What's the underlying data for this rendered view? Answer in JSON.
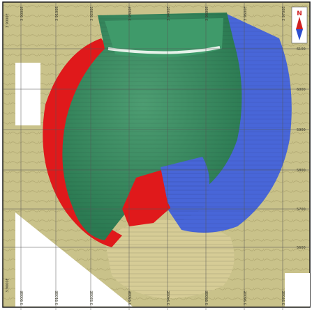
{
  "north_arrow": {
    "letter": "N"
  },
  "grid": {
    "top_labels": [
      "3 9000E",
      "3 9100E",
      "3 9200E",
      "3 9300E",
      "3 9400E",
      "3 9500E",
      "3 9600E",
      "3 9700E"
    ],
    "bottom_labels": [
      "3 9000E",
      "3 9100E",
      "3 9200E",
      "3 9300E",
      "3 9400E",
      "3 9500E",
      "3 9600E",
      "3 9700E"
    ],
    "left_labels": [
      "3 9000E",
      "3 9000E"
    ],
    "right_labels": [
      "6100",
      "6000",
      "5900",
      "5800",
      "5700",
      "5600"
    ]
  },
  "colors": {
    "terrain": "#c9c28a",
    "terrain_dark": "#a89e62",
    "pit_green": "#2f8a5e",
    "pit_green_light": "#5fb186",
    "pit_red": "#e0191b",
    "pit_blue": "#4866d8",
    "pit_tan": "#d6cc96",
    "frame": "#1a1a1a",
    "white_area": "#ffffff"
  }
}
